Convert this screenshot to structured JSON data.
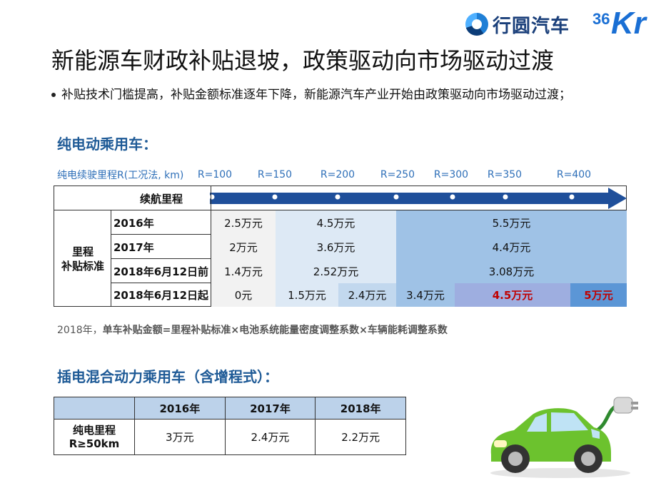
{
  "logos": {
    "xingyuan": "行圆汽车",
    "kr_number": "36",
    "kr_letters": "Kr"
  },
  "title": "新能源车财政补贴退坡，政策驱动向市场驱动过渡",
  "bullet": "补贴技术门槛提高，补贴金额标准逐年下降，新能源汽车产业开始由政策驱动向市场驱动过渡；",
  "bev": {
    "heading": "纯电动乘用车：",
    "range_label": "纯电续驶里程R(工况法, km)",
    "range_markers": [
      "R=100",
      "R=150",
      "R=200",
      "R=250",
      "R=300",
      "R=350",
      "R=400"
    ],
    "header_label": "续航里程",
    "side_label_1": "里程",
    "side_label_2": "补贴标准",
    "rows": [
      {
        "year": "2016年",
        "values": [
          "2.5万元",
          "4.5万元",
          "5.5万元"
        ]
      },
      {
        "year": "2017年",
        "values": [
          "2万元",
          "3.6万元",
          "4.4万元"
        ]
      },
      {
        "year": "2018年6月12日前",
        "values": [
          "1.4万元",
          "2.52万元",
          "3.08万元"
        ]
      },
      {
        "year": "2018年6月12日起",
        "values": [
          "0元",
          "1.5万元",
          "2.4万元",
          "3.4万元",
          "4.5万元",
          "5万元"
        ]
      }
    ]
  },
  "formula": {
    "prefix": "2018年，",
    "text": "单车补贴金额=里程补贴标准×电池系统能量密度调整系数×车辆能耗调整系数"
  },
  "phev": {
    "heading": "插电混合动力乘用车（含增程式）：",
    "columns": [
      "2016年",
      "2017年",
      "2018年"
    ],
    "row_label_1": "纯电里程",
    "row_label_2": "R≥50km",
    "values": [
      "3万元",
      "2.4万元",
      "2.2万元"
    ]
  },
  "colors": {
    "arrow": "#1f4f9a",
    "light_blue": "#dde9f5",
    "mid_blue": "#9fc2e6",
    "purple_blue": "#9eaee0",
    "strong_blue": "#5b96d6",
    "highlight_red": "#c00000"
  }
}
